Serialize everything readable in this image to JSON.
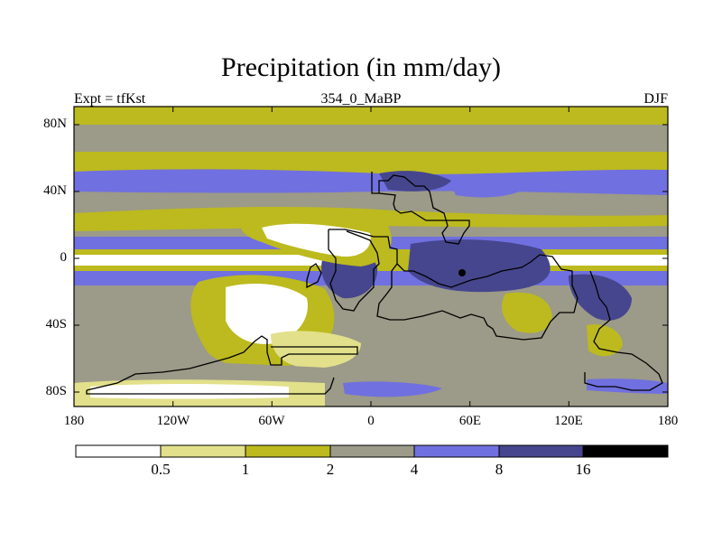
{
  "title": "Precipitation (in mm/day)",
  "left_string": "Expt = tfKst",
  "center_string": "354_0_MaBP",
  "right_string": "DJF",
  "colors": {
    "c1": "#ffffff",
    "c2": "#e2e08a",
    "c3": "#bcba1e",
    "c4": "#9c9a88",
    "c5": "#7070e0",
    "c6": "#46468e",
    "c7": "#000000",
    "land_outline": "#000000"
  },
  "map": {
    "lat_ticks": [
      "80N",
      "40N",
      "0",
      "40S",
      "80S"
    ],
    "lon_ticks": [
      "180",
      "120W",
      "60W",
      "0",
      "60E",
      "120E",
      "180"
    ]
  },
  "colorbar": {
    "labels": [
      "0.5",
      "1",
      "2",
      "4",
      "8",
      "16"
    ]
  }
}
